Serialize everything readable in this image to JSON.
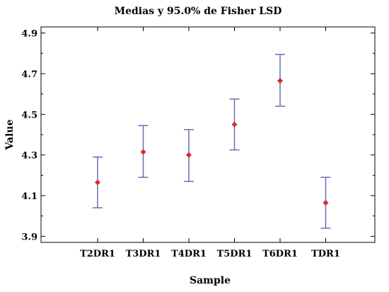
{
  "chart_data": {
    "type": "scatter",
    "title": "Medias y 95.0% de Fisher LSD",
    "xlabel": "Sample",
    "ylabel": "Value",
    "categories": [
      "T2DR1",
      "T3DR1",
      "T4DR1",
      "T5DR1",
      "T6DR1",
      "TDR1"
    ],
    "means": [
      4.165,
      4.315,
      4.3,
      4.45,
      4.665,
      4.065
    ],
    "lower": [
      4.04,
      4.19,
      4.17,
      4.325,
      4.54,
      3.94
    ],
    "upper": [
      4.29,
      4.445,
      4.425,
      4.575,
      4.795,
      4.19
    ],
    "yticks": [
      "3.9",
      "4.1",
      "4.3",
      "4.5",
      "4.7",
      "4.9"
    ],
    "ylim": [
      3.87,
      4.93
    ],
    "grid": false,
    "point_color": "#d62b2b",
    "error_bar_color": "#6b6bb5"
  }
}
